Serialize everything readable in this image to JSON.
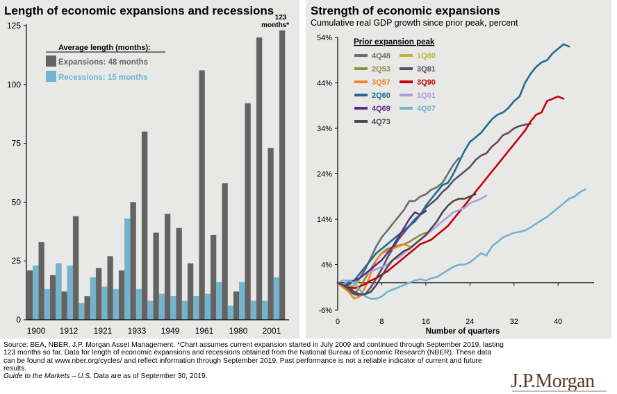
{
  "footer": {
    "source_text": "Source: BEA, NBER, J.P. Morgan Asset Management. *Chart assumes current expansion started in July 2009 and continued through September 2019, lasting 123 months so far. Data for length of economic expansions and recessions obtained from the National Bureau of Economic Research (NBER). These data can be found at www.nber.org/cycles/ and reflect information through September 2019. Past performance is not a reliable indicator of current and future results.",
    "guide_italic": "Guide to the Markets – U.S.",
    "guide_rest": " Data are as of September 30, 2019."
  },
  "logo": {
    "text": "J.P.Morgan"
  },
  "chart_data": [
    {
      "type": "bar",
      "title": "Length of economic expansions and recessions",
      "xlabel": "",
      "ylabel": "",
      "ylim": [
        0,
        125
      ],
      "yticks": [
        0,
        25,
        50,
        75,
        100,
        125
      ],
      "xtick_labels": [
        "1900",
        "1912",
        "1921",
        "1933",
        "1949",
        "1961",
        "1980",
        "2001"
      ],
      "legend": {
        "heading": "Average length (months):",
        "entries": [
          {
            "name": "Expansions",
            "label": "Expansions:  48  months",
            "color": "#636363"
          },
          {
            "name": "Recessions",
            "label": "Recessions:  15  months",
            "color": "#72b4cf"
          }
        ],
        "placement": "top-left"
      },
      "annotation": {
        "line1": "123",
        "line2": "months*"
      },
      "colors": {
        "expansion": "#636363",
        "recession": "#72b4cf"
      },
      "bars": [
        {
          "kind": "expansion",
          "value": 21
        },
        {
          "kind": "recession",
          "value": 23
        },
        {
          "kind": "expansion",
          "value": 33
        },
        {
          "kind": "recession",
          "value": 13
        },
        {
          "kind": "expansion",
          "value": 19
        },
        {
          "kind": "recession",
          "value": 24
        },
        {
          "kind": "expansion",
          "value": 12
        },
        {
          "kind": "recession",
          "value": 23
        },
        {
          "kind": "expansion",
          "value": 44
        },
        {
          "kind": "recession",
          "value": 7
        },
        {
          "kind": "expansion",
          "value": 10
        },
        {
          "kind": "recession",
          "value": 18
        },
        {
          "kind": "expansion",
          "value": 22
        },
        {
          "kind": "recession",
          "value": 14
        },
        {
          "kind": "expansion",
          "value": 27
        },
        {
          "kind": "recession",
          "value": 13
        },
        {
          "kind": "expansion",
          "value": 21
        },
        {
          "kind": "recession",
          "value": 43
        },
        {
          "kind": "expansion",
          "value": 50
        },
        {
          "kind": "recession",
          "value": 13
        },
        {
          "kind": "expansion",
          "value": 80
        },
        {
          "kind": "recession",
          "value": 8
        },
        {
          "kind": "expansion",
          "value": 37
        },
        {
          "kind": "recession",
          "value": 11
        },
        {
          "kind": "expansion",
          "value": 45
        },
        {
          "kind": "recession",
          "value": 10
        },
        {
          "kind": "expansion",
          "value": 39
        },
        {
          "kind": "recession",
          "value": 8
        },
        {
          "kind": "expansion",
          "value": 24
        },
        {
          "kind": "recession",
          "value": 10
        },
        {
          "kind": "expansion",
          "value": 106
        },
        {
          "kind": "recession",
          "value": 11
        },
        {
          "kind": "expansion",
          "value": 36
        },
        {
          "kind": "recession",
          "value": 16
        },
        {
          "kind": "expansion",
          "value": 58
        },
        {
          "kind": "recession",
          "value": 6
        },
        {
          "kind": "expansion",
          "value": 12
        },
        {
          "kind": "recession",
          "value": 16
        },
        {
          "kind": "expansion",
          "value": 92
        },
        {
          "kind": "recession",
          "value": 8
        },
        {
          "kind": "expansion",
          "value": 120
        },
        {
          "kind": "recession",
          "value": 8
        },
        {
          "kind": "expansion",
          "value": 73
        },
        {
          "kind": "recession",
          "value": 18
        },
        {
          "kind": "expansion",
          "value": 123
        }
      ]
    },
    {
      "type": "line",
      "title": "Strength of economic expansions",
      "subtitle": "Cumulative real GDP growth since prior peak, percent",
      "xlabel": "Number of quarters",
      "ylabel": "",
      "xlim": [
        0,
        46
      ],
      "ylim": [
        -6,
        54
      ],
      "xticks": [
        0,
        8,
        16,
        24,
        32,
        40
      ],
      "yticks": [
        -6,
        4,
        14,
        24,
        34,
        44,
        54
      ],
      "ytick_suffix": "%",
      "legend": {
        "heading": "Prior expansion peak",
        "placement": "top-left"
      },
      "series": [
        {
          "name": "4Q48",
          "color": "#6d6d6d",
          "values": [
            0,
            -1,
            -1.5,
            -0.5,
            1,
            3,
            5.5,
            8,
            10,
            11.5,
            13,
            14.5,
            16,
            18,
            18,
            19,
            19.5,
            20.5,
            21,
            22,
            24,
            26,
            27.5
          ]
        },
        {
          "name": "1Q80",
          "color": "#b7b83c",
          "values": [
            0,
            -0.5,
            -1,
            -0.5,
            0.5
          ]
        },
        {
          "name": "2Q53",
          "color": "#8a8f3d",
          "values": [
            0,
            -1,
            -2,
            -2.5,
            -1,
            1,
            3,
            5,
            6.5,
            7.5,
            7.8,
            8.2,
            8.5,
            9,
            9.8,
            10.5,
            11
          ]
        },
        {
          "name": "3Q81",
          "color": "#5e4a67",
          "values": [
            0,
            -0.5,
            -1.5,
            -2.5,
            -2.8,
            -2.5,
            -1,
            1,
            3,
            5.5,
            7.5,
            9.5,
            11,
            12.5,
            13.5,
            15,
            16.5,
            17.5,
            18.5,
            20,
            21,
            22.5,
            23.5,
            24.5,
            25.5,
            27,
            28,
            28.5,
            30,
            31,
            32.5,
            33,
            34,
            34.5,
            34.8,
            35
          ]
        },
        {
          "name": "3Q57",
          "color": "#f58220",
          "values": [
            0,
            -1,
            -2,
            -3.5,
            -3,
            -1,
            2,
            5,
            6.5,
            7,
            7.5,
            8,
            8.5,
            8
          ]
        },
        {
          "name": "3Q90",
          "color": "#c4000c",
          "values": [
            0,
            -0.5,
            -1,
            -1.2,
            -0.8,
            -0.3,
            0.5,
            1,
            1.8,
            2.5,
            3.5,
            4.5,
            5.5,
            6.5,
            7.5,
            8.5,
            9,
            9.5,
            10.5,
            11.5,
            12.5,
            14,
            15.5,
            17,
            18.5,
            20,
            21.5,
            23,
            24.5,
            26,
            27.5,
            29,
            30.5,
            32,
            33.5,
            35.5,
            37,
            37.5,
            40,
            40.5,
            41,
            40.5
          ]
        },
        {
          "name": "2Q60",
          "color": "#1d6c8e",
          "values": [
            0,
            -0.5,
            -0.5,
            0.5,
            2,
            3.5,
            5,
            6.5,
            7.5,
            8.5,
            9.5,
            10.5,
            11.5,
            12.5,
            14,
            15,
            17,
            18.5,
            20,
            21.5,
            22,
            24,
            26.5,
            29,
            31,
            32,
            33,
            34.5,
            36,
            37,
            37.5,
            38.5,
            40,
            41,
            44,
            46,
            47.5,
            48.5,
            49,
            50.5,
            51.5,
            52.5,
            52
          ]
        },
        {
          "name": "1Q01",
          "color": "#a89fdb",
          "values": [
            0,
            0.5,
            0.5,
            0.5,
            1,
            2,
            2.5,
            3,
            3.5,
            4,
            5,
            5.5,
            6.5,
            7.5,
            8.5,
            9.5,
            10.5,
            11.5,
            12.5,
            13.5,
            14.5,
            15.5,
            16,
            16.5,
            17.5,
            18,
            18.5,
            19.2
          ]
        },
        {
          "name": "4Q69",
          "color": "#5a2d8a",
          "values": [
            0,
            -0.5,
            0,
            0.5,
            1,
            2,
            3,
            4,
            5,
            6.5,
            8,
            10,
            12,
            14,
            15.5,
            15,
            15.8
          ]
        },
        {
          "name": "4Q07",
          "color": "#6fb3d0",
          "values": [
            0,
            -0.5,
            0.5,
            0,
            -1.5,
            -3,
            -3.5,
            -3.5,
            -3,
            -2,
            -1.5,
            -1,
            -0.5,
            0,
            0.5,
            0.8,
            0.5,
            1,
            1.3,
            2,
            2.8,
            3.5,
            4,
            4,
            4.5,
            5.5,
            6.5,
            6,
            8,
            9,
            10,
            10.5,
            11,
            11.2,
            11.5,
            12.2,
            13,
            13.8,
            14.5,
            15.5,
            16.5,
            17.5,
            18.5,
            19,
            20,
            20.6
          ]
        },
        {
          "name": "4Q73",
          "color": "#4a4748",
          "values": [
            0,
            -0.5,
            -1,
            -2,
            -2.5,
            -2.5,
            -2,
            -0.5,
            1.5,
            3.5,
            5,
            6,
            7,
            7.5,
            8.5,
            9.5,
            10.5,
            12,
            13.5,
            15.5,
            17,
            18,
            18.5,
            18.5,
            19,
            19.5
          ]
        }
      ]
    }
  ]
}
